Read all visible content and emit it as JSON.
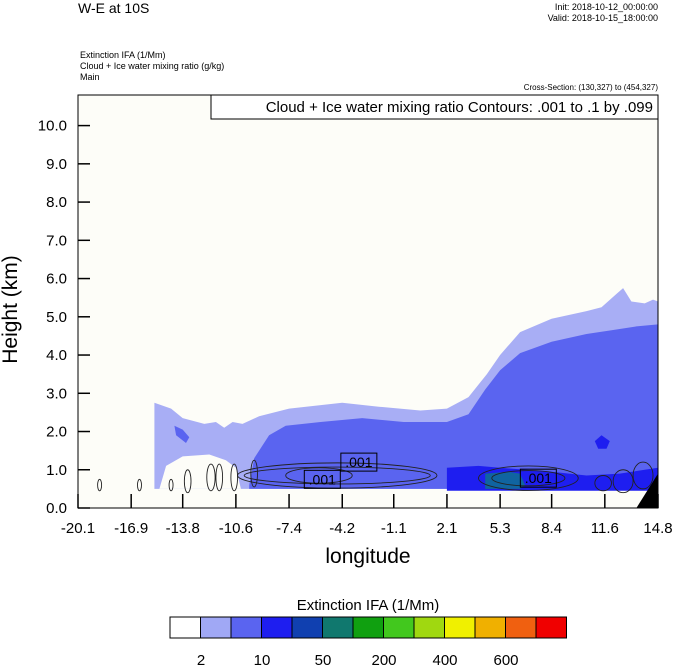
{
  "header": {
    "title": "W-E at 10S",
    "init": "Init: 2018-10-12_00:00:00",
    "valid": "Valid: 2018-10-15_18:00:00",
    "variables": [
      "Extinction IFA   (1/Mm)",
      "Cloud + Ice water mixing ratio   (g/kg)",
      "Main"
    ],
    "cross_section": "Cross-Section: (130,327) to (454,327)"
  },
  "chart_data": {
    "type": "heatmap",
    "contour_annotation": "Cloud + Ice water mixing ratio Contours: .001 to .1 by .099",
    "contour_labels": [
      {
        "x": -5.4,
        "y": 0.75,
        "text": ".001"
      },
      {
        "x": -3.2,
        "y": 1.2,
        "text": ".001"
      },
      {
        "x": 7.6,
        "y": 0.78,
        "text": ".001"
      }
    ],
    "xlabel": "longitude",
    "ylabel": "Height (km)",
    "xlim": [
      -20.1,
      14.8
    ],
    "ylim": [
      0.0,
      10.8
    ],
    "x_ticks": [
      "-20.1",
      "-16.9",
      "-13.8",
      "-10.6",
      "-7.4",
      "-4.2",
      "-1.1",
      "2.1",
      "5.3",
      "8.4",
      "11.6",
      "14.8"
    ],
    "y_ticks": [
      "0.0",
      "1.0",
      "2.0",
      "3.0",
      "4.0",
      "5.0",
      "6.0",
      "7.0",
      "8.0",
      "9.0",
      "10.0"
    ],
    "colorbar": {
      "title": "Extinction IFA  (1/Mm)",
      "labels": [
        "2",
        "10",
        "50",
        "200",
        "400",
        "600"
      ],
      "colors": [
        "#ffffff",
        "#a0a8f5",
        "#5a64f0",
        "#1e1ef0",
        "#1040b0",
        "#10786e",
        "#10a010",
        "#42c81e",
        "#a0d810",
        "#f0f000",
        "#f0b000",
        "#f06010",
        "#f00000"
      ]
    },
    "fill_colors": {
      "background": "#fdfdf8",
      "light": "#a8aef5",
      "medium": "#5a64f0",
      "dark": "#1e1ef0",
      "teal": "#1064a0",
      "terrain": "#000000"
    }
  }
}
